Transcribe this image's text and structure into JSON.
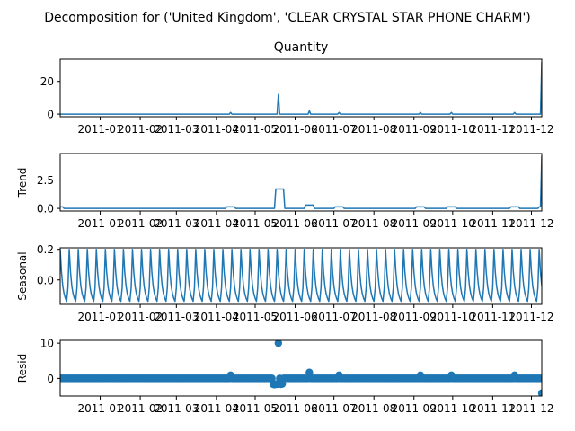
{
  "figure": {
    "suptitle": "Decomposition for ('United Kingdom', 'CLEAR CRYSTAL STAR PHONE CHARM')"
  },
  "colors": {
    "series": "#1f77b4",
    "axes": "#000000",
    "background": "#ffffff"
  },
  "chart_data": [
    {
      "type": "line",
      "title": "Quantity",
      "ylabel": "",
      "grid": false,
      "x_range": [
        "2010-12-01",
        "2011-12-09"
      ],
      "ylim": [
        -1.6,
        33.6
      ],
      "yticks": [
        0,
        20
      ],
      "xtick_labels": [
        "2011-01",
        "2011-02",
        "2011-03",
        "2011-04",
        "2011-05",
        "2011-06",
        "2011-07",
        "2011-08",
        "2011-09",
        "2011-10",
        "2011-11",
        "2011-12"
      ],
      "baseline": 0,
      "spikes": [
        {
          "date": "2011-04-12",
          "value": 1
        },
        {
          "date": "2011-05-19",
          "value": 12
        },
        {
          "date": "2011-05-20",
          "value": 0
        },
        {
          "date": "2011-06-12",
          "value": 2
        },
        {
          "date": "2011-07-05",
          "value": 1
        },
        {
          "date": "2011-09-06",
          "value": 1
        },
        {
          "date": "2011-09-30",
          "value": 1
        },
        {
          "date": "2011-11-18",
          "value": 1
        },
        {
          "date": "2011-12-09",
          "value": 32
        }
      ]
    },
    {
      "type": "line",
      "title": "",
      "ylabel": "Trend",
      "grid": false,
      "x_range": [
        "2010-12-01",
        "2011-12-09"
      ],
      "ylim": [
        -0.23,
        4.83
      ],
      "yticks": [
        0.0,
        2.5
      ],
      "ytick_labels": [
        "0.0",
        "2.5"
      ],
      "xtick_labels": [
        "2011-01",
        "2011-02",
        "2011-03",
        "2011-04",
        "2011-05",
        "2011-06",
        "2011-07",
        "2011-08",
        "2011-09",
        "2011-10",
        "2011-11",
        "2011-12"
      ],
      "baseline": 0.0,
      "plateaus": [
        {
          "start": "2010-12-01",
          "end": "2010-12-03",
          "value": 0.14
        },
        {
          "start": "2011-04-09",
          "end": "2011-04-15",
          "value": 0.14
        },
        {
          "start": "2011-05-17",
          "end": "2011-05-23",
          "value": 1.71
        },
        {
          "start": "2011-06-09",
          "end": "2011-06-15",
          "value": 0.29
        },
        {
          "start": "2011-07-02",
          "end": "2011-07-08",
          "value": 0.14
        },
        {
          "start": "2011-09-03",
          "end": "2011-09-09",
          "value": 0.14
        },
        {
          "start": "2011-09-27",
          "end": "2011-10-03",
          "value": 0.14
        },
        {
          "start": "2011-11-15",
          "end": "2011-11-21",
          "value": 0.14
        },
        {
          "start": "2011-12-07",
          "end": "2011-12-08",
          "value": 0.14
        }
      ],
      "end_point": {
        "date": "2011-12-09",
        "value": 4.6
      }
    },
    {
      "type": "line",
      "title": "",
      "ylabel": "Seasonal",
      "grid": false,
      "x_range": [
        "2010-12-01",
        "2011-12-09"
      ],
      "ylim": [
        -0.16,
        0.21
      ],
      "yticks": [
        0.0,
        0.2
      ],
      "ytick_labels": [
        "0.0",
        "0.2"
      ],
      "xtick_labels": [
        "2011-01",
        "2011-02",
        "2011-03",
        "2011-04",
        "2011-05",
        "2011-06",
        "2011-07",
        "2011-08",
        "2011-09",
        "2011-10",
        "2011-11",
        "2011-12"
      ],
      "period_days": 7,
      "weekly_pattern": [
        0.2,
        0.05,
        -0.04,
        -0.09,
        -0.12,
        -0.14,
        -0.05
      ]
    },
    {
      "type": "scatter",
      "title": "",
      "ylabel": "Resid",
      "grid": false,
      "x_range": [
        "2010-12-01",
        "2011-12-09"
      ],
      "ylim": [
        -5.0,
        10.8
      ],
      "yticks": [
        0,
        10
      ],
      "xtick_labels": [
        "2011-01",
        "2011-02",
        "2011-03",
        "2011-04",
        "2011-05",
        "2011-06",
        "2011-07",
        "2011-08",
        "2011-09",
        "2011-10",
        "2011-11",
        "2011-12"
      ],
      "baseline": 0,
      "outliers": [
        {
          "date": "2011-04-12",
          "value": 0.9
        },
        {
          "date": "2011-05-15",
          "value": -1.7
        },
        {
          "date": "2011-05-16",
          "value": -1.8
        },
        {
          "date": "2011-05-17",
          "value": -1.6
        },
        {
          "date": "2011-05-18",
          "value": -1.7
        },
        {
          "date": "2011-05-19",
          "value": 10.0
        },
        {
          "date": "2011-05-21",
          "value": -1.7
        },
        {
          "date": "2011-05-22",
          "value": -1.6
        },
        {
          "date": "2011-06-12",
          "value": 1.7
        },
        {
          "date": "2011-07-05",
          "value": 0.9
        },
        {
          "date": "2011-09-06",
          "value": 0.9
        },
        {
          "date": "2011-09-30",
          "value": 0.9
        },
        {
          "date": "2011-11-18",
          "value": 0.9
        },
        {
          "date": "2011-12-09",
          "value": -4.2
        }
      ]
    }
  ]
}
